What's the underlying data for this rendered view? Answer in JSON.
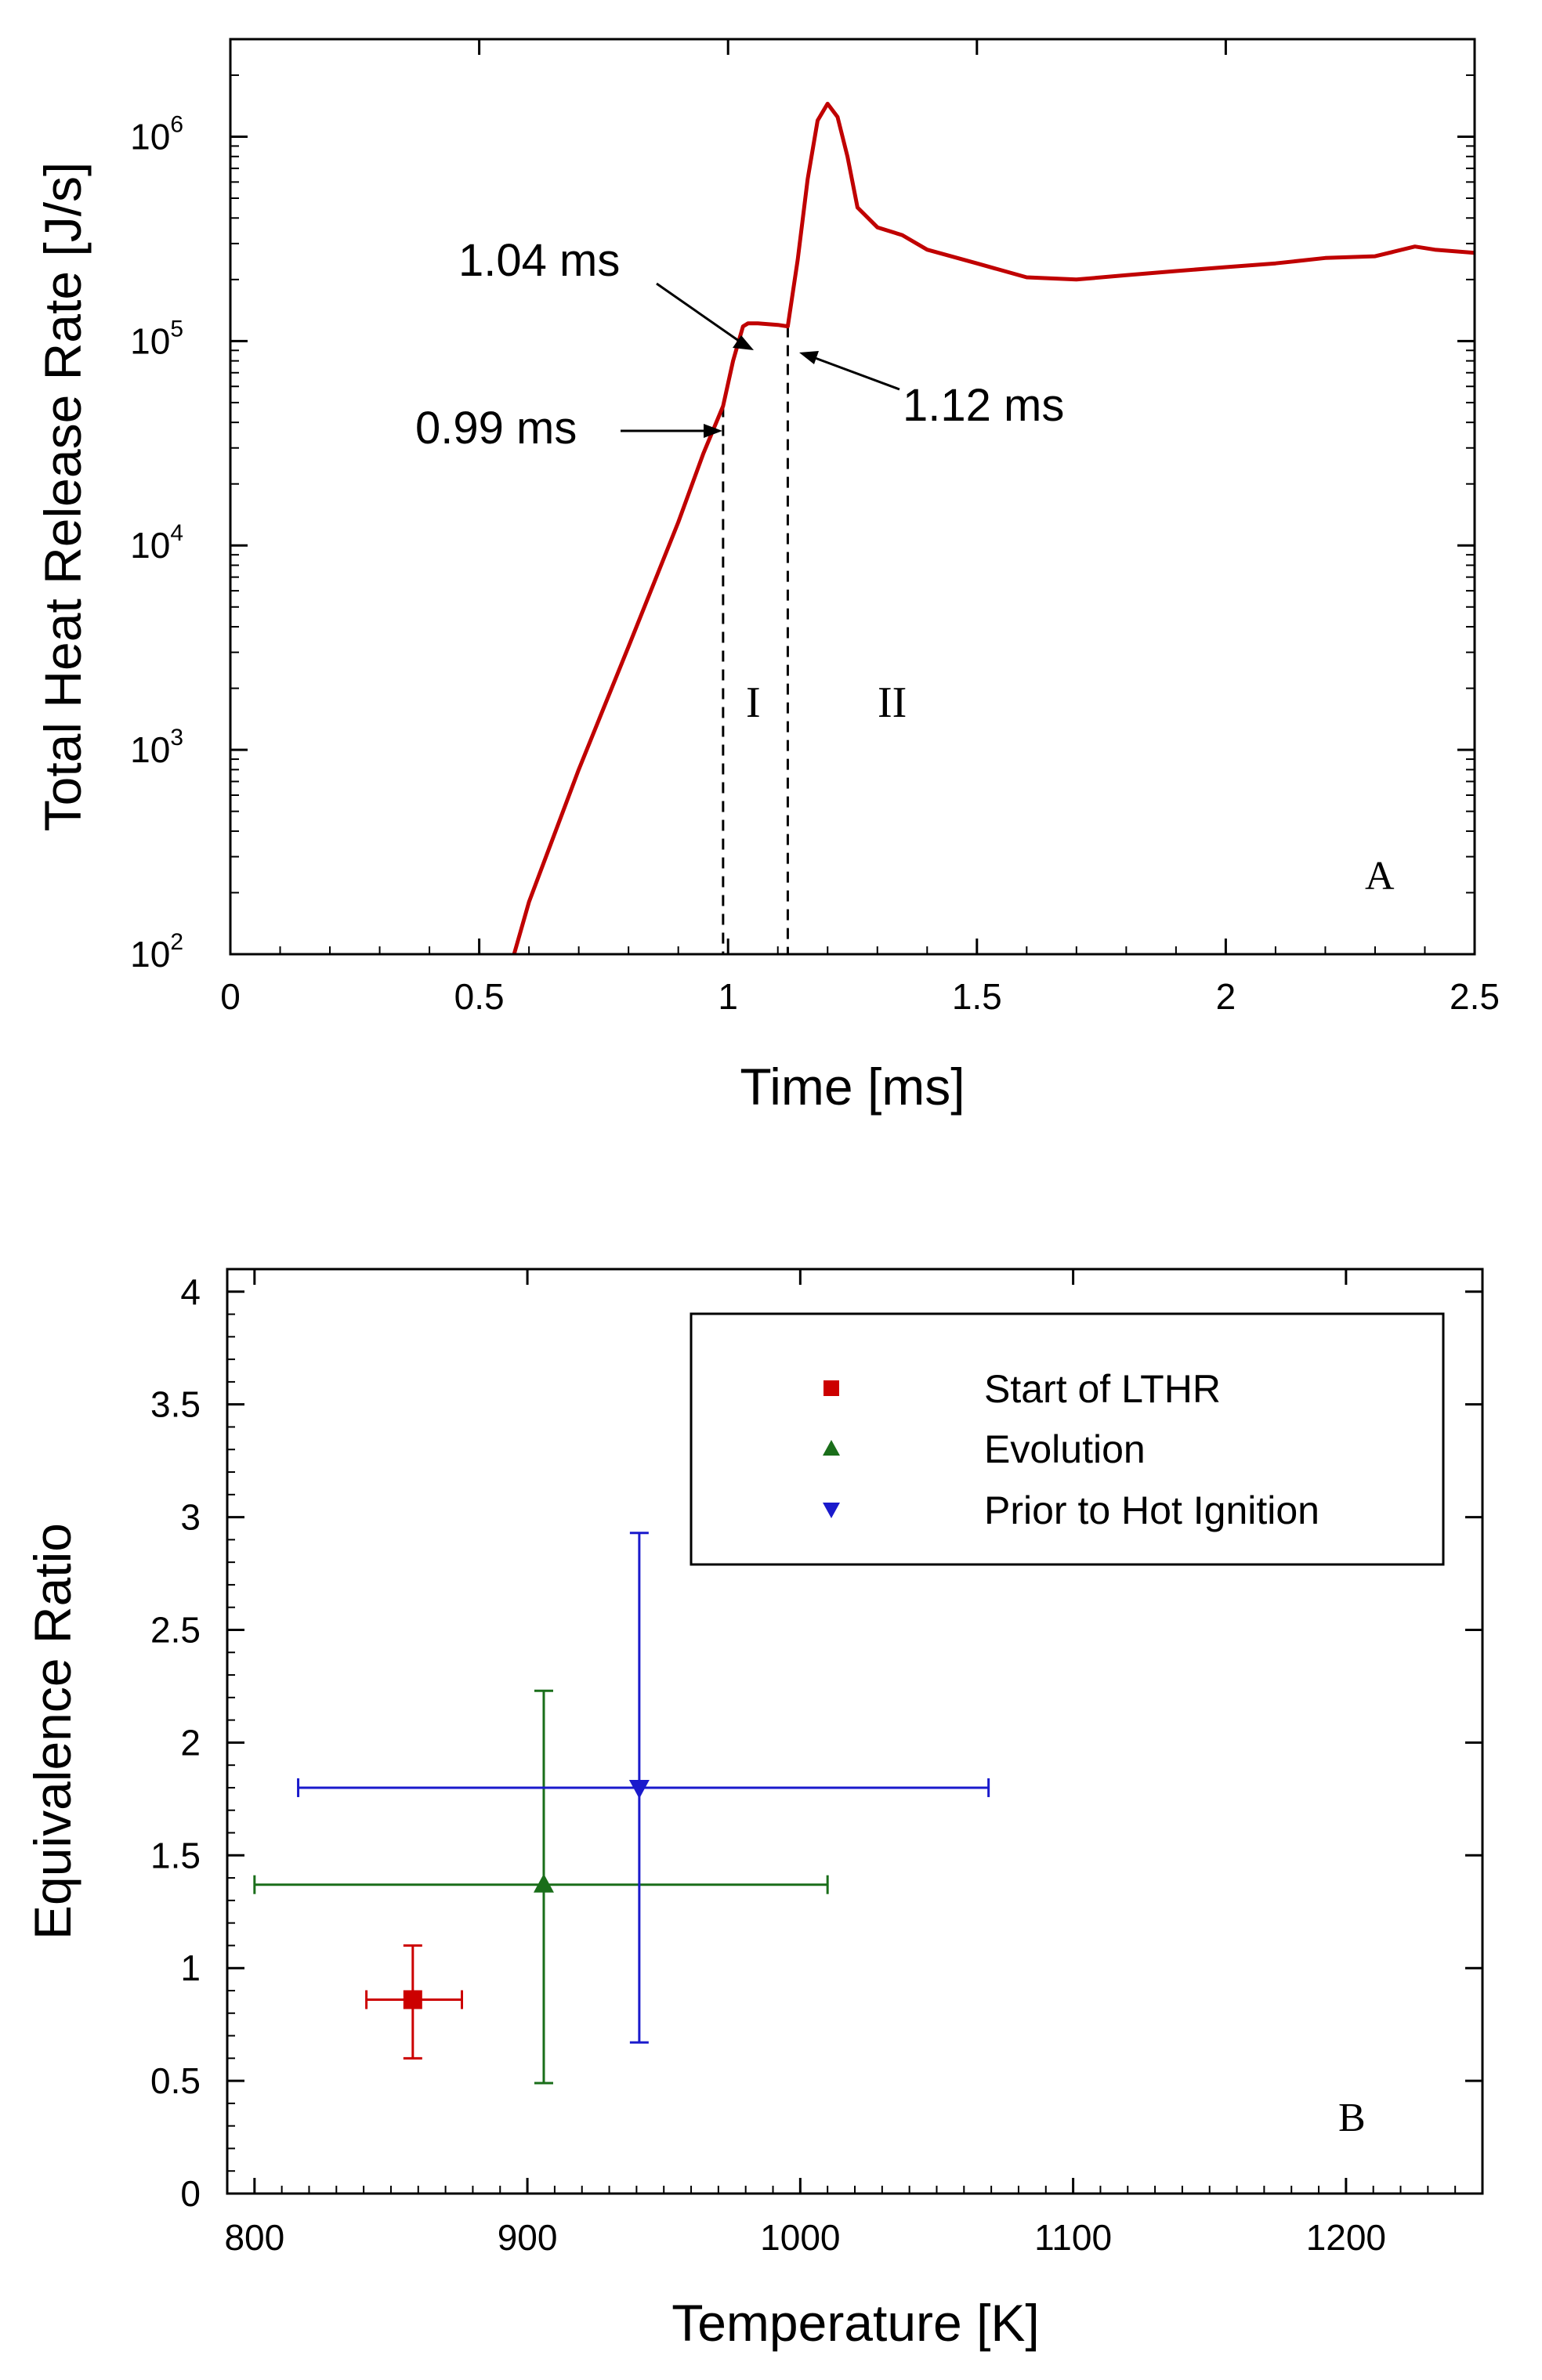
{
  "chart_data": [
    {
      "type": "line",
      "panel_label": "A",
      "xlabel": "Time [ms]",
      "ylabel": "Total Heat Release Rate [J/s]",
      "xlim": [
        0,
        2.5
      ],
      "ylim": [
        100,
        3000000
      ],
      "yscale": "log",
      "xticks": [
        0,
        0.5,
        1,
        1.5,
        2,
        2.5
      ],
      "xtick_labels": [
        "0",
        "0.5",
        "1",
        "1.5",
        "2",
        "2.5"
      ],
      "yticks": [
        100,
        1000,
        10000,
        100000,
        1000000
      ],
      "ytick_base": "10",
      "ytick_exponents": [
        "2",
        "3",
        "4",
        "5",
        "6"
      ],
      "series": [
        {
          "name": "Total Heat Release Rate",
          "color": "#c00000",
          "x": [
            0.57,
            0.6,
            0.7,
            0.8,
            0.9,
            0.95,
            0.99,
            1.01,
            1.03,
            1.04,
            1.06,
            1.08,
            1.1,
            1.12,
            1.14,
            1.16,
            1.18,
            1.2,
            1.22,
            1.24,
            1.26,
            1.3,
            1.35,
            1.4,
            1.5,
            1.6,
            1.7,
            1.8,
            1.9,
            2.0,
            2.1,
            2.2,
            2.3,
            2.38,
            2.42,
            2.5
          ],
          "y": [
            100,
            180,
            800,
            3200,
            13000,
            28000,
            48000,
            80000,
            118000,
            122000,
            122000,
            121000,
            120000,
            118000,
            250000,
            620000,
            1200000,
            1450000,
            1250000,
            800000,
            450000,
            360000,
            330000,
            280000,
            240000,
            205000,
            200000,
            210000,
            220000,
            230000,
            240000,
            255000,
            260000,
            290000,
            280000,
            270000
          ]
        }
      ],
      "vlines": [
        0.99,
        1.12
      ],
      "annotations": [
        {
          "text": "1.04 ms",
          "x": 1.04,
          "y": 122000
        },
        {
          "text": "0.99 ms",
          "x": 0.99,
          "y": 48000
        },
        {
          "text": "1.12 ms",
          "x": 1.12,
          "y": 118000
        }
      ],
      "regions": [
        {
          "text": "I",
          "x": 1.05,
          "y": 2000
        },
        {
          "text": "II",
          "x": 1.34,
          "y": 2000
        }
      ]
    },
    {
      "type": "scatter",
      "panel_label": "B",
      "xlabel": "Temperature [K]",
      "ylabel": "Equivalence Ratio",
      "xlim": [
        790,
        1250
      ],
      "ylim": [
        0,
        4.1
      ],
      "xticks": [
        800,
        900,
        1000,
        1100,
        1200
      ],
      "xtick_labels": [
        "800",
        "900",
        "1000",
        "1100",
        "1200"
      ],
      "yticks": [
        0,
        0.5,
        1,
        1.5,
        2,
        2.5,
        3,
        3.5,
        4
      ],
      "ytick_labels": [
        "0",
        "0.5",
        "1",
        "1.5",
        "2",
        "2.5",
        "3",
        "3.5",
        "4"
      ],
      "series": [
        {
          "name": "Start of LTHR",
          "color": "#cc0000",
          "marker": "square",
          "x": 858,
          "y": 0.86,
          "xerr": [
            841,
            876
          ],
          "yerr": [
            0.6,
            1.1
          ]
        },
        {
          "name": "Evolution",
          "color": "#1a6e1a",
          "marker": "triangle-up",
          "x": 906,
          "y": 1.37,
          "xerr": [
            800,
            1010
          ],
          "yerr": [
            0.49,
            2.23
          ]
        },
        {
          "name": "Prior to Hot Ignition",
          "color": "#1a1acc",
          "marker": "triangle-down",
          "x": 941,
          "y": 1.8,
          "xerr": [
            816,
            1069
          ],
          "yerr": [
            0.67,
            2.93
          ]
        }
      ],
      "legend_position": "top-right"
    }
  ]
}
